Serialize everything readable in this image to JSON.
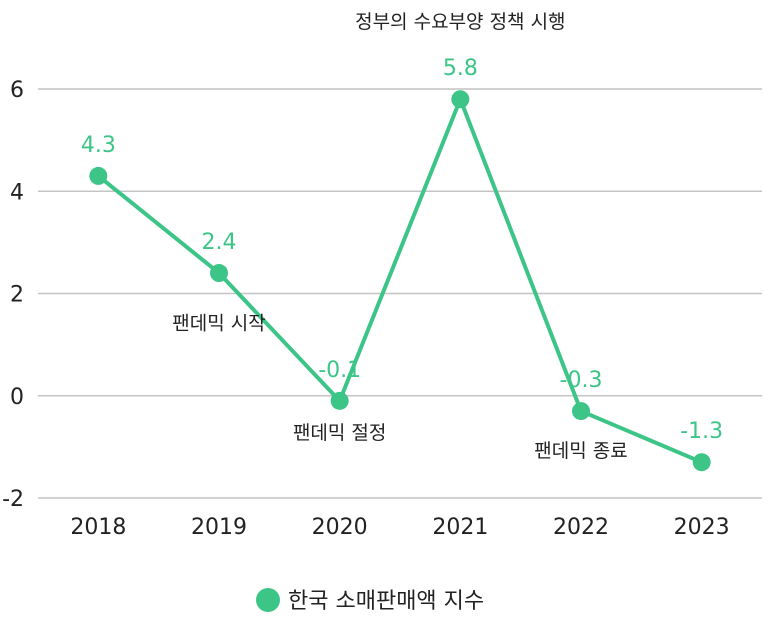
{
  "chart_data": {
    "type": "line",
    "title": "",
    "xlabel": "",
    "ylabel": "",
    "categories": [
      "2018",
      "2019",
      "2020",
      "2021",
      "2022",
      "2023"
    ],
    "series": [
      {
        "name": "한국 소매판매액 지수",
        "values": [
          4.3,
          2.4,
          -0.1,
          5.8,
          -0.3,
          -1.3
        ],
        "color": "#3CC587"
      }
    ],
    "ylim": [
      -2,
      6
    ],
    "yticks": [
      -2,
      0,
      2,
      4,
      6
    ],
    "grid": true,
    "legend_position": "bottom",
    "annotations": [
      {
        "text": "정부의 수요부양 정책 시행",
        "x": "2021",
        "y": 6.0
      },
      {
        "text": "팬데믹 시작",
        "x": "2019",
        "y": 1.3
      },
      {
        "text": "팬데믹 절정",
        "x": "2020",
        "y": -0.85
      },
      {
        "text": "팬데믹 종료",
        "x": "2022",
        "y": -1.2
      }
    ]
  }
}
